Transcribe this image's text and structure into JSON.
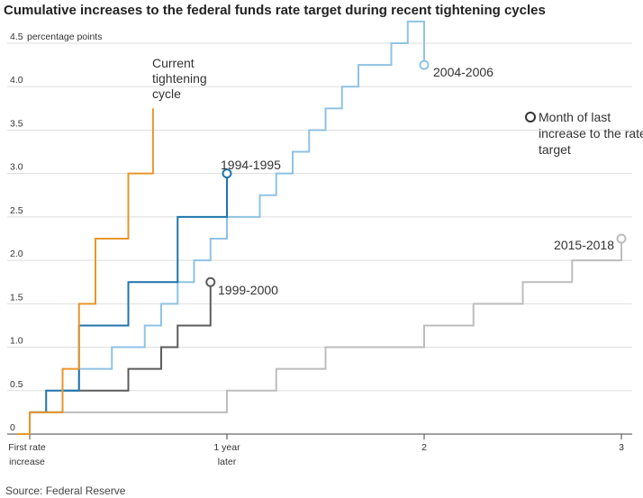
{
  "title": "Cumulative increases to the federal funds rate target during recent tightening cycles",
  "source": "Source: Federal Reserve",
  "colors": {
    "grid": "#dedede",
    "axis": "#444444",
    "current": "#e8962a",
    "c1994": "#1f74ab",
    "c2004": "#8fc3e4",
    "c1999": "#5c5c5c",
    "c2015": "#bdbdbd"
  },
  "chart_data": {
    "type": "line",
    "step": true,
    "x_unit": "months since first rate increase",
    "xlim": [
      -0.75,
      36
    ],
    "ylim": [
      0,
      4.5
    ],
    "y_unit_label": "percentage points",
    "y_ticks": [
      "0",
      "0.5",
      "1.0",
      "1.5",
      "2.0",
      "2.5",
      "3.0",
      "3.5",
      "4.0",
      "4.5"
    ],
    "x_ticks": [
      {
        "value": 0,
        "lines": [
          "First rate",
          "increase"
        ]
      },
      {
        "value": 12,
        "lines": [
          "1 year",
          "later"
        ]
      },
      {
        "value": 24,
        "lines": [
          "2"
        ]
      },
      {
        "value": 36,
        "lines": [
          "3"
        ]
      }
    ],
    "legend_note": "Month of last increase to the rate target",
    "series": [
      {
        "key": "current",
        "name": "Current tightening cycle",
        "color": "current",
        "x": [
          -0.75,
          0,
          2,
          3,
          4,
          6,
          7.5
        ],
        "y": [
          0,
          0.25,
          0.75,
          1.5,
          2.25,
          3.0,
          3.75
        ],
        "end_marker": false
      },
      {
        "key": "c1994",
        "name": "1994-1995",
        "color": "c1994",
        "x": [
          0,
          1,
          3,
          6,
          9,
          10,
          12
        ],
        "y": [
          0.25,
          0.5,
          1.25,
          1.75,
          2.5,
          2.5,
          3.0
        ],
        "end_marker": true
      },
      {
        "key": "c2004",
        "name": "2004-2006",
        "color": "c2004",
        "x": [
          0,
          2,
          3,
          5,
          7,
          8,
          9,
          10,
          11,
          12,
          14,
          15,
          16,
          17,
          18,
          19,
          20,
          22,
          23,
          24
        ],
        "y": [
          0.25,
          0.5,
          0.75,
          1.0,
          1.25,
          1.5,
          1.75,
          2.0,
          2.25,
          2.5,
          2.75,
          3.0,
          3.25,
          3.5,
          3.75,
          4.0,
          4.25,
          4.5,
          4.75,
          4.25
        ],
        "end_marker": true
      },
      {
        "key": "c1999",
        "name": "1999-2000",
        "color": "c1999",
        "x": [
          0,
          2,
          4,
          6,
          8,
          9,
          11
        ],
        "y": [
          0.25,
          0.5,
          0.5,
          0.75,
          1.0,
          1.25,
          1.75
        ],
        "end_marker": true
      },
      {
        "key": "c2015",
        "name": "2015-2018",
        "color": "c2015",
        "x": [
          0,
          12,
          15,
          18,
          24,
          27,
          30,
          33,
          36
        ],
        "y": [
          0.25,
          0.5,
          0.75,
          1.0,
          1.25,
          1.5,
          1.75,
          2.0,
          2.25
        ],
        "end_marker": true
      }
    ],
    "labels": [
      {
        "key": "current",
        "lines": [
          "Current",
          "tightening",
          "cycle"
        ]
      },
      {
        "key": "c1994",
        "lines": [
          "1994-1995"
        ]
      },
      {
        "key": "c2004",
        "lines": [
          "2004-2006"
        ]
      },
      {
        "key": "c1999",
        "lines": [
          "1999-2000"
        ]
      },
      {
        "key": "c2015",
        "lines": [
          "2015-2018"
        ]
      }
    ]
  }
}
